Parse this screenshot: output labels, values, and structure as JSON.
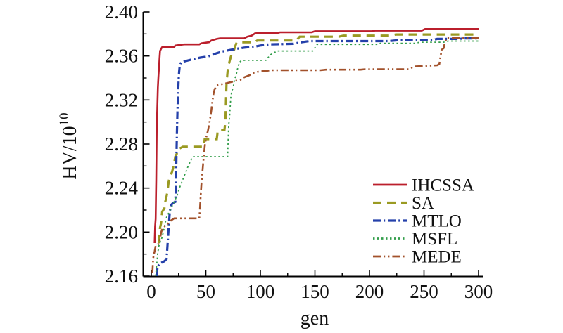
{
  "figure": {
    "background": "#ffffff"
  },
  "chart_data": {
    "type": "line",
    "title": "",
    "xlabel": "gen",
    "ylabel": {
      "base": "HV/10",
      "exponent": "10"
    },
    "x_axis": {
      "min": 0,
      "max": 300,
      "major_tick_step": 50,
      "minor_tick_step": 25,
      "tick_labels": [
        "0",
        "50",
        "100",
        "150",
        "200",
        "250",
        "300"
      ]
    },
    "y_axis": {
      "min": 2.16,
      "max": 2.4,
      "major_tick_step": 0.04,
      "minor_tick_step": 0.02,
      "tick_labels": [
        "2.16",
        "2.20",
        "2.24",
        "2.28",
        "2.32",
        "2.36",
        "2.40"
      ]
    },
    "grid": false,
    "axis_color": "#000000",
    "legend": {
      "position": "inside-bottom-right",
      "entries": [
        "IHCSSA",
        "SA",
        "MTLO",
        "MSFL",
        "MEDE"
      ]
    },
    "series": [
      {
        "name": "IHCSSA",
        "color": "#bb1f2c",
        "line_style": "solid",
        "line_width": 2.6,
        "points": [
          [
            3,
            2.19
          ],
          [
            3.5,
            2.205
          ],
          [
            4,
            2.212
          ],
          [
            4.5,
            2.247
          ],
          [
            5,
            2.298
          ],
          [
            5.5,
            2.312
          ],
          [
            6,
            2.331
          ],
          [
            6.5,
            2.341
          ],
          [
            7,
            2.348
          ],
          [
            7.5,
            2.357
          ],
          [
            8,
            2.3645
          ],
          [
            9,
            2.3665
          ],
          [
            10,
            2.368
          ],
          [
            21,
            2.368
          ],
          [
            22,
            2.3695
          ],
          [
            30,
            2.3705
          ],
          [
            44,
            2.3705
          ],
          [
            46,
            2.3715
          ],
          [
            53,
            2.3725
          ],
          [
            55,
            2.374
          ],
          [
            60,
            2.3755
          ],
          [
            63,
            2.376
          ],
          [
            85,
            2.376
          ],
          [
            88,
            2.3775
          ],
          [
            92,
            2.3785
          ],
          [
            95,
            2.3805
          ],
          [
            100,
            2.381
          ],
          [
            116,
            2.381
          ],
          [
            118,
            2.3815
          ],
          [
            147,
            2.3815
          ],
          [
            150,
            2.3825
          ],
          [
            202,
            2.3825
          ],
          [
            205,
            2.383
          ],
          [
            248,
            2.383
          ],
          [
            251,
            2.3845
          ],
          [
            300,
            2.3845
          ]
        ]
      },
      {
        "name": "SA",
        "color": "#9a9a22",
        "line_style": "dashed",
        "line_width": 3.2,
        "points": [
          [
            7,
            2.19
          ],
          [
            7.5,
            2.198
          ],
          [
            8,
            2.204
          ],
          [
            9,
            2.208
          ],
          [
            9.5,
            2.214
          ],
          [
            10,
            2.2185
          ],
          [
            12,
            2.2215
          ],
          [
            12.5,
            2.2265
          ],
          [
            13,
            2.2285
          ],
          [
            14,
            2.2325
          ],
          [
            15,
            2.2385
          ],
          [
            16,
            2.2465
          ],
          [
            17,
            2.2505
          ],
          [
            19,
            2.2545
          ],
          [
            20,
            2.2585
          ],
          [
            21,
            2.263
          ],
          [
            22,
            2.2685
          ],
          [
            23,
            2.2705
          ],
          [
            24,
            2.2725
          ],
          [
            25,
            2.2755
          ],
          [
            27,
            2.2765
          ],
          [
            29,
            2.2775
          ],
          [
            48,
            2.2775
          ],
          [
            49,
            2.2845
          ],
          [
            60,
            2.2845
          ],
          [
            61,
            2.2925
          ],
          [
            67,
            2.2925
          ],
          [
            68,
            2.301
          ],
          [
            68.5,
            2.321
          ],
          [
            69,
            2.335
          ],
          [
            70,
            2.3465
          ],
          [
            71,
            2.3525
          ],
          [
            72,
            2.356
          ],
          [
            73,
            2.3595
          ],
          [
            74,
            2.3615
          ],
          [
            75,
            2.3625
          ],
          [
            76,
            2.366
          ],
          [
            77,
            2.369
          ],
          [
            78,
            2.3715
          ],
          [
            79,
            2.3725
          ],
          [
            95,
            2.3725
          ],
          [
            97,
            2.374
          ],
          [
            133,
            2.374
          ],
          [
            136,
            2.3775
          ],
          [
            172,
            2.3775
          ],
          [
            176,
            2.3785
          ],
          [
            220,
            2.3785
          ],
          [
            224,
            2.3795
          ],
          [
            300,
            2.3795
          ]
        ]
      },
      {
        "name": "MTLO",
        "color": "#2440aa",
        "line_style": "dash-dot",
        "line_width": 3.2,
        "points": [
          [
            5,
            2.16
          ],
          [
            5.5,
            2.166
          ],
          [
            6,
            2.169
          ],
          [
            8,
            2.1715
          ],
          [
            12,
            2.1735
          ],
          [
            14,
            2.1755
          ],
          [
            15,
            2.1905
          ],
          [
            16,
            2.2055
          ],
          [
            17,
            2.2185
          ],
          [
            18,
            2.2245
          ],
          [
            20,
            2.2265
          ],
          [
            22,
            2.2275
          ],
          [
            22.5,
            2.2405
          ],
          [
            23,
            2.2675
          ],
          [
            23.5,
            2.2905
          ],
          [
            24,
            2.3105
          ],
          [
            24.5,
            2.3245
          ],
          [
            25,
            2.3375
          ],
          [
            25.5,
            2.3455
          ],
          [
            26,
            2.3505
          ],
          [
            27,
            2.3535
          ],
          [
            28,
            2.3545
          ],
          [
            32,
            2.3555
          ],
          [
            38,
            2.357
          ],
          [
            45,
            2.3585
          ],
          [
            52,
            2.3595
          ],
          [
            56,
            2.361
          ],
          [
            60,
            2.3625
          ],
          [
            65,
            2.364
          ],
          [
            70,
            2.365
          ],
          [
            78,
            2.3665
          ],
          [
            85,
            2.3675
          ],
          [
            95,
            2.3685
          ],
          [
            100,
            2.3695
          ],
          [
            108,
            2.3705
          ],
          [
            130,
            2.371
          ],
          [
            138,
            2.3725
          ],
          [
            145,
            2.3735
          ],
          [
            218,
            2.3735
          ],
          [
            228,
            2.3745
          ],
          [
            258,
            2.3745
          ],
          [
            262,
            2.3755
          ],
          [
            283,
            2.3755
          ],
          [
            286,
            2.376
          ],
          [
            300,
            2.376
          ]
        ]
      },
      {
        "name": "MSFL",
        "color": "#339e4b",
        "line_style": "dotted",
        "line_width": 1.8,
        "points": [
          [
            4,
            2.16
          ],
          [
            5,
            2.1715
          ],
          [
            6,
            2.1815
          ],
          [
            7,
            2.1875
          ],
          [
            8,
            2.1905
          ],
          [
            10,
            2.1955
          ],
          [
            11,
            2.2005
          ],
          [
            12,
            2.2045
          ],
          [
            13,
            2.2095
          ],
          [
            14,
            2.2135
          ],
          [
            16,
            2.2175
          ],
          [
            18,
            2.2215
          ],
          [
            20,
            2.2255
          ],
          [
            22,
            2.2295
          ],
          [
            24,
            2.2345
          ],
          [
            26,
            2.2405
          ],
          [
            28,
            2.2455
          ],
          [
            30,
            2.2505
          ],
          [
            32,
            2.2555
          ],
          [
            34,
            2.2605
          ],
          [
            36,
            2.2645
          ],
          [
            38,
            2.2685
          ],
          [
            70,
            2.2685
          ],
          [
            70.5,
            2.285
          ],
          [
            71,
            2.2975
          ],
          [
            72,
            2.308
          ],
          [
            72.5,
            2.317
          ],
          [
            73,
            2.3235
          ],
          [
            74,
            2.3285
          ],
          [
            75,
            2.331
          ],
          [
            76,
            2.337
          ],
          [
            77,
            2.3405
          ],
          [
            78,
            2.3435
          ],
          [
            79,
            2.348
          ],
          [
            80,
            2.3515
          ],
          [
            81,
            2.3545
          ],
          [
            83,
            2.356
          ],
          [
            105,
            2.356
          ],
          [
            107,
            2.3585
          ],
          [
            109,
            2.361
          ],
          [
            112,
            2.3625
          ],
          [
            115,
            2.3645
          ],
          [
            148,
            2.3645
          ],
          [
            152,
            2.3705
          ],
          [
            206,
            2.3705
          ],
          [
            210,
            2.3715
          ],
          [
            242,
            2.3715
          ],
          [
            246,
            2.3725
          ],
          [
            268,
            2.3725
          ],
          [
            272,
            2.3735
          ],
          [
            300,
            2.3735
          ]
        ]
      },
      {
        "name": "MEDE",
        "color": "#a2512b",
        "line_style": "dash-dot-dot",
        "line_width": 2.6,
        "points": [
          [
            1,
            2.163
          ],
          [
            1.5,
            2.172
          ],
          [
            2,
            2.1785
          ],
          [
            3,
            2.1825
          ],
          [
            4,
            2.1875
          ],
          [
            7,
            2.1895
          ],
          [
            8,
            2.1935
          ],
          [
            9,
            2.1995
          ],
          [
            10,
            2.2025
          ],
          [
            11,
            2.2045
          ],
          [
            14,
            2.2065
          ],
          [
            16,
            2.2085
          ],
          [
            18,
            2.2105
          ],
          [
            21,
            2.2125
          ],
          [
            44,
            2.2125
          ],
          [
            44.5,
            2.2195
          ],
          [
            45,
            2.2285
          ],
          [
            45.5,
            2.2365
          ],
          [
            46,
            2.2445
          ],
          [
            47,
            2.2565
          ],
          [
            48,
            2.2675
          ],
          [
            49,
            2.2775
          ],
          [
            50,
            2.2845
          ],
          [
            52,
            2.2925
          ],
          [
            53,
            2.2975
          ],
          [
            54,
            2.3035
          ],
          [
            55,
            2.3105
          ],
          [
            56,
            2.3185
          ],
          [
            57,
            2.3255
          ],
          [
            58,
            2.3295
          ],
          [
            60,
            2.3335
          ],
          [
            66,
            2.3345
          ],
          [
            72,
            2.336
          ],
          [
            78,
            2.3375
          ],
          [
            82,
            2.3385
          ],
          [
            85,
            2.3405
          ],
          [
            90,
            2.3425
          ],
          [
            93,
            2.3445
          ],
          [
            97,
            2.3455
          ],
          [
            100,
            2.346
          ],
          [
            106,
            2.3465
          ],
          [
            110,
            2.347
          ],
          [
            155,
            2.347
          ],
          [
            160,
            2.3475
          ],
          [
            192,
            2.3475
          ],
          [
            196,
            2.348
          ],
          [
            236,
            2.348
          ],
          [
            239,
            2.3495
          ],
          [
            241,
            2.3505
          ],
          [
            262,
            2.3515
          ],
          [
            264,
            2.3525
          ],
          [
            265,
            2.3585
          ],
          [
            266,
            2.3655
          ],
          [
            268,
            2.367
          ],
          [
            269,
            2.372
          ],
          [
            271,
            2.3765
          ],
          [
            300,
            2.3765
          ]
        ]
      }
    ]
  }
}
